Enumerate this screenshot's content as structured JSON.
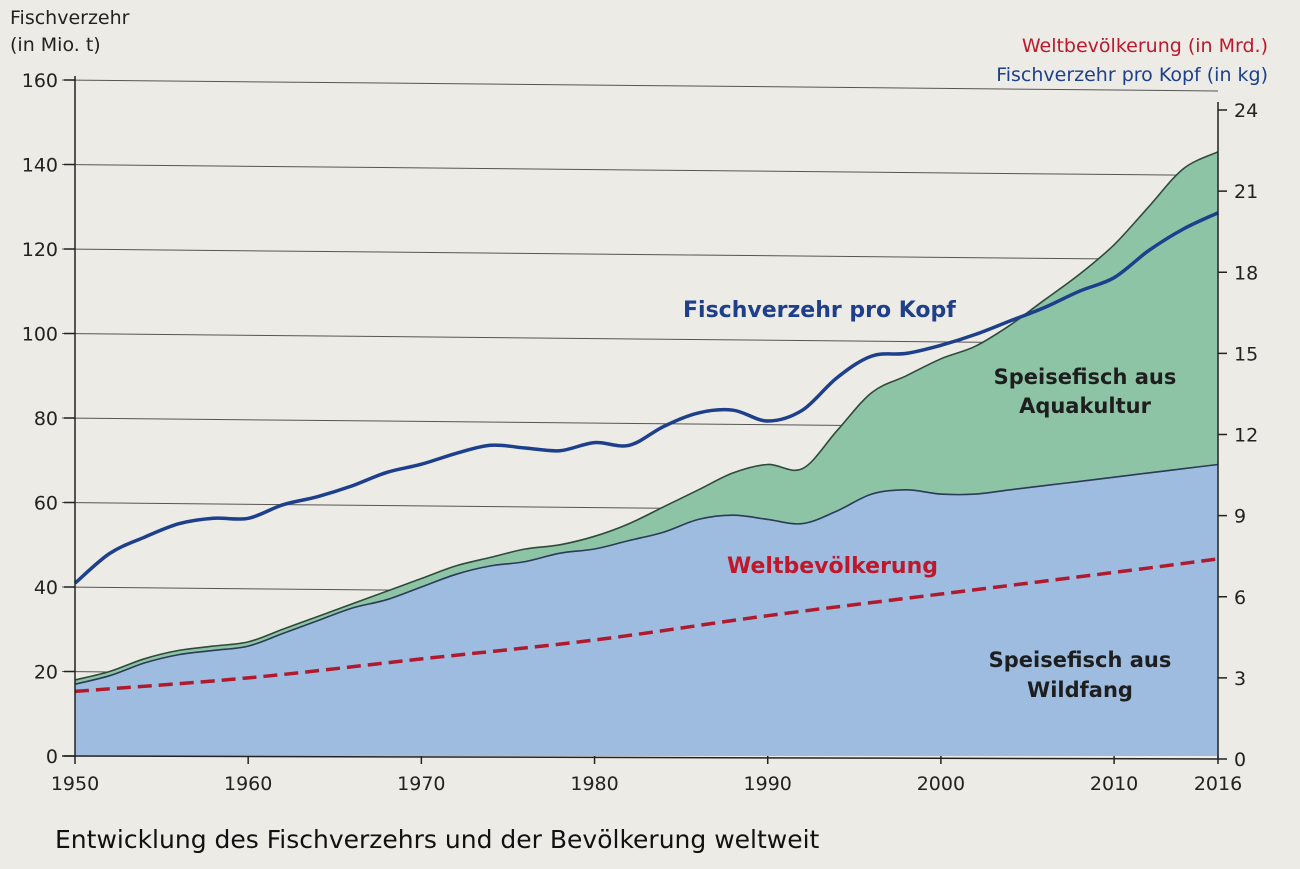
{
  "chart_data": {
    "type": "area",
    "title": "Entwicklung des Fischverzehrs und der Bevölkerung weltweit",
    "left_axis": {
      "label_line1": "Fischverzehr",
      "label_line2": "(in Mio. t)",
      "ylim": [
        0,
        160
      ],
      "ticks": [
        0,
        20,
        40,
        60,
        80,
        100,
        120,
        140,
        160
      ]
    },
    "right_axis": {
      "legend_population": "Weltbevölkerung (in Mrd.)",
      "legend_per_capita": "Fischverzehr pro Kopf (in kg)",
      "ylim": [
        0,
        24
      ],
      "ticks": [
        0,
        3,
        6,
        9,
        12,
        15,
        18,
        21,
        24
      ]
    },
    "x_axis": {
      "xlim": [
        1950,
        2016
      ],
      "ticks": [
        1950,
        1960,
        1970,
        1980,
        1990,
        2000,
        2010,
        2016
      ]
    },
    "series": [
      {
        "name": "Speisefisch aus Wildfang",
        "axis": "left",
        "color": "#9dbcdf",
        "x": [
          1950,
          1952,
          1954,
          1956,
          1958,
          1960,
          1962,
          1964,
          1966,
          1968,
          1970,
          1972,
          1974,
          1976,
          1978,
          1980,
          1982,
          1984,
          1986,
          1988,
          1990,
          1992,
          1994,
          1996,
          1998,
          2000,
          2002,
          2004,
          2006,
          2008,
          2010,
          2012,
          2014,
          2016
        ],
        "values": [
          17,
          19,
          22,
          24,
          25,
          26,
          29,
          32,
          35,
          37,
          40,
          43,
          45,
          46,
          48,
          49,
          51,
          53,
          56,
          57,
          56,
          55,
          58,
          62,
          63,
          62,
          62,
          63,
          64,
          65,
          66,
          67,
          68,
          69
        ]
      },
      {
        "name": "Speisefisch aus Aquakultur",
        "axis": "left",
        "color": "#8ec4a6",
        "stacked_on": "Speisefisch aus Wildfang",
        "x": [
          1950,
          1952,
          1954,
          1956,
          1958,
          1960,
          1962,
          1964,
          1966,
          1968,
          1970,
          1972,
          1974,
          1976,
          1978,
          1980,
          1982,
          1984,
          1986,
          1988,
          1990,
          1992,
          1994,
          1996,
          1998,
          2000,
          2002,
          2004,
          2006,
          2008,
          2010,
          2012,
          2014,
          2016
        ],
        "totals": [
          18,
          20,
          23,
          25,
          26,
          27,
          30,
          33,
          36,
          39,
          42,
          45,
          47,
          49,
          50,
          52,
          55,
          59,
          63,
          67,
          69,
          68,
          77,
          86,
          90,
          94,
          97,
          102,
          108,
          114,
          121,
          130,
          139,
          143
        ]
      },
      {
        "name": "Fischverzehr pro Kopf",
        "axis": "right",
        "color": "#1d3f8c",
        "x": [
          1950,
          1952,
          1954,
          1956,
          1958,
          1960,
          1962,
          1964,
          1966,
          1968,
          1970,
          1972,
          1974,
          1976,
          1978,
          1980,
          1982,
          1984,
          1986,
          1988,
          1990,
          1992,
          1994,
          1996,
          1998,
          2000,
          2002,
          2004,
          2006,
          2008,
          2010,
          2012,
          2014,
          2016
        ],
        "values": [
          6.5,
          7.6,
          8.2,
          8.7,
          8.9,
          8.9,
          9.4,
          9.7,
          10.1,
          10.6,
          10.9,
          11.3,
          11.6,
          11.5,
          11.4,
          11.7,
          11.6,
          12.3,
          12.8,
          12.9,
          12.5,
          12.9,
          14.1,
          14.9,
          15.0,
          15.3,
          15.7,
          16.2,
          16.7,
          17.3,
          17.8,
          18.8,
          19.6,
          20.2
        ]
      },
      {
        "name": "Weltbevölkerung",
        "axis": "right",
        "color": "#b01a2e",
        "style": "dashed",
        "x": [
          1950,
          1960,
          1970,
          1980,
          1990,
          2000,
          2010,
          2016
        ],
        "values": [
          2.5,
          3.0,
          3.7,
          4.4,
          5.3,
          6.1,
          6.9,
          7.4
        ]
      }
    ],
    "annotations": {
      "per_capita": "Fischverzehr pro Kopf",
      "population": "Weltbevölkerung",
      "aqua_line1": "Speisefisch aus",
      "aqua_line2": "Aquakultur",
      "wild_line1": "Speisefisch aus",
      "wild_line2": "Wildfang"
    },
    "grid": true
  }
}
